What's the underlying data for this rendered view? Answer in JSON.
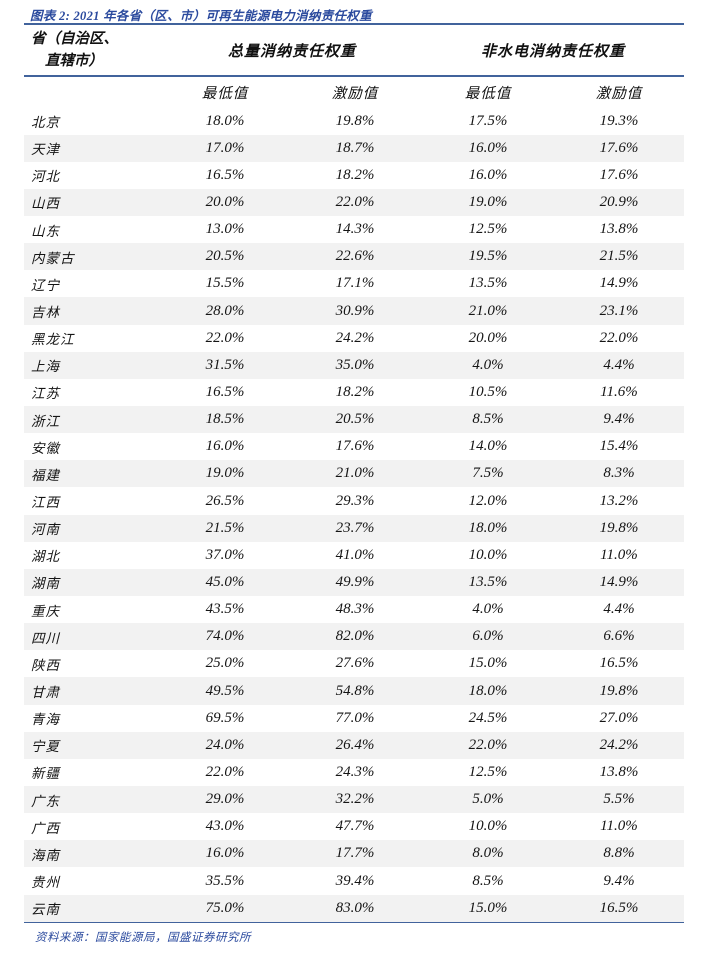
{
  "title": "图表 2: 2021 年各省（区、市）可再生能源电力消纳责任权重",
  "source": "资料来源：国家能源局，国盛证券研究所",
  "colors": {
    "accent_blue": "#2b4a9e",
    "rule_blue": "#41639c",
    "stripe_gray": "#f2f2f2",
    "text": "#151515"
  },
  "table": {
    "province_header_line1": "省（自治区、",
    "province_header_line2": "直辖市）",
    "group_headers": [
      "总量消纳责任权重",
      "非水电消纳责任权重"
    ],
    "sub_headers": [
      "最低值",
      "激励值",
      "最低值",
      "激励值"
    ],
    "rows": [
      {
        "province": "北京",
        "values": [
          "18.0%",
          "19.8%",
          "17.5%",
          "19.3%"
        ]
      },
      {
        "province": "天津",
        "values": [
          "17.0%",
          "18.7%",
          "16.0%",
          "17.6%"
        ]
      },
      {
        "province": "河北",
        "values": [
          "16.5%",
          "18.2%",
          "16.0%",
          "17.6%"
        ]
      },
      {
        "province": "山西",
        "values": [
          "20.0%",
          "22.0%",
          "19.0%",
          "20.9%"
        ]
      },
      {
        "province": "山东",
        "values": [
          "13.0%",
          "14.3%",
          "12.5%",
          "13.8%"
        ]
      },
      {
        "province": "内蒙古",
        "values": [
          "20.5%",
          "22.6%",
          "19.5%",
          "21.5%"
        ]
      },
      {
        "province": "辽宁",
        "values": [
          "15.5%",
          "17.1%",
          "13.5%",
          "14.9%"
        ]
      },
      {
        "province": "吉林",
        "values": [
          "28.0%",
          "30.9%",
          "21.0%",
          "23.1%"
        ]
      },
      {
        "province": "黑龙江",
        "values": [
          "22.0%",
          "24.2%",
          "20.0%",
          "22.0%"
        ]
      },
      {
        "province": "上海",
        "values": [
          "31.5%",
          "35.0%",
          "4.0%",
          "4.4%"
        ]
      },
      {
        "province": "江苏",
        "values": [
          "16.5%",
          "18.2%",
          "10.5%",
          "11.6%"
        ]
      },
      {
        "province": "浙江",
        "values": [
          "18.5%",
          "20.5%",
          "8.5%",
          "9.4%"
        ]
      },
      {
        "province": "安徽",
        "values": [
          "16.0%",
          "17.6%",
          "14.0%",
          "15.4%"
        ]
      },
      {
        "province": "福建",
        "values": [
          "19.0%",
          "21.0%",
          "7.5%",
          "8.3%"
        ]
      },
      {
        "province": "江西",
        "values": [
          "26.5%",
          "29.3%",
          "12.0%",
          "13.2%"
        ]
      },
      {
        "province": "河南",
        "values": [
          "21.5%",
          "23.7%",
          "18.0%",
          "19.8%"
        ]
      },
      {
        "province": "湖北",
        "values": [
          "37.0%",
          "41.0%",
          "10.0%",
          "11.0%"
        ]
      },
      {
        "province": "湖南",
        "values": [
          "45.0%",
          "49.9%",
          "13.5%",
          "14.9%"
        ]
      },
      {
        "province": "重庆",
        "values": [
          "43.5%",
          "48.3%",
          "4.0%",
          "4.4%"
        ]
      },
      {
        "province": "四川",
        "values": [
          "74.0%",
          "82.0%",
          "6.0%",
          "6.6%"
        ]
      },
      {
        "province": "陕西",
        "values": [
          "25.0%",
          "27.6%",
          "15.0%",
          "16.5%"
        ]
      },
      {
        "province": "甘肃",
        "values": [
          "49.5%",
          "54.8%",
          "18.0%",
          "19.8%"
        ]
      },
      {
        "province": "青海",
        "values": [
          "69.5%",
          "77.0%",
          "24.5%",
          "27.0%"
        ]
      },
      {
        "province": "宁夏",
        "values": [
          "24.0%",
          "26.4%",
          "22.0%",
          "24.2%"
        ]
      },
      {
        "province": "新疆",
        "values": [
          "22.0%",
          "24.3%",
          "12.5%",
          "13.8%"
        ]
      },
      {
        "province": "广东",
        "values": [
          "29.0%",
          "32.2%",
          "5.0%",
          "5.5%"
        ]
      },
      {
        "province": "广西",
        "values": [
          "43.0%",
          "47.7%",
          "10.0%",
          "11.0%"
        ]
      },
      {
        "province": "海南",
        "values": [
          "16.0%",
          "17.7%",
          "8.0%",
          "8.8%"
        ]
      },
      {
        "province": "贵州",
        "values": [
          "35.5%",
          "39.4%",
          "8.5%",
          "9.4%"
        ]
      },
      {
        "province": "云南",
        "values": [
          "75.0%",
          "83.0%",
          "15.0%",
          "16.5%"
        ]
      }
    ]
  },
  "chart_data": {
    "type": "table",
    "title": "2021 年各省（区、市）可再生能源电力消纳责任权重",
    "columns": [
      "省（自治区、直辖市）",
      "总量消纳责任权重-最低值",
      "总量消纳责任权重-激励值",
      "非水电消纳责任权重-最低值",
      "非水电消纳责任权重-激励值"
    ],
    "unit": "%"
  }
}
